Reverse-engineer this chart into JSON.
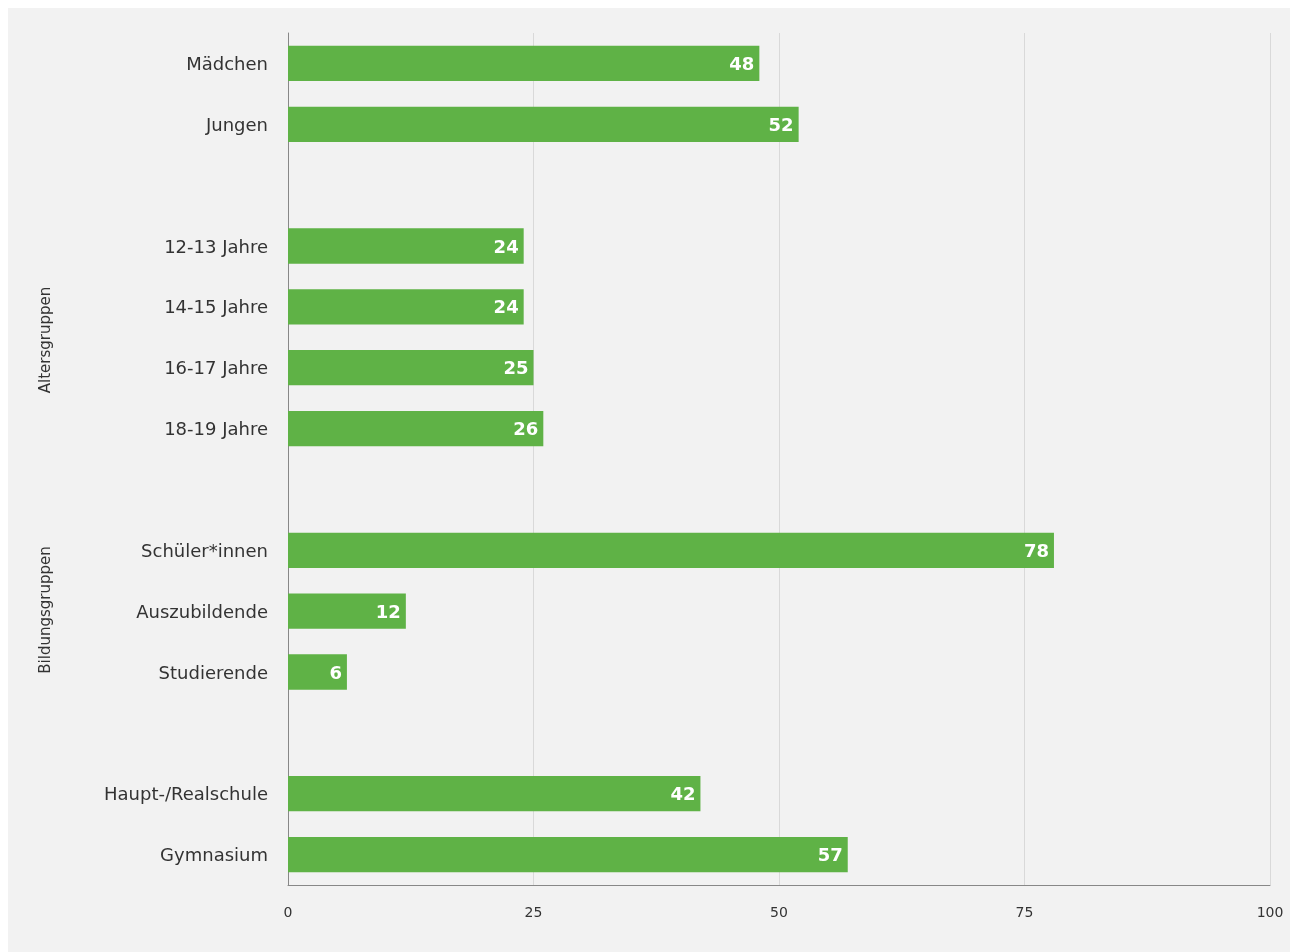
{
  "chart_data": {
    "type": "bar",
    "orientation": "horizontal",
    "categories": [
      "Mädchen",
      "Jungen",
      null,
      "12-13 Jahre",
      "14-15 Jahre",
      "16-17 Jahre",
      "18-19 Jahre",
      null,
      "Schüler*innen",
      "Auszubildende",
      "Studierende",
      null,
      "Haupt-/Realschule",
      "Gymnasium"
    ],
    "values": [
      48,
      52,
      null,
      24,
      24,
      25,
      26,
      null,
      78,
      12,
      6,
      null,
      42,
      57
    ],
    "color": "#5fb246",
    "xlim": [
      0,
      100
    ],
    "xticks": [
      0,
      25,
      50,
      75,
      100
    ],
    "grid": "x",
    "data_labels": true,
    "annotations": [
      "Altersgruppen",
      "Bildungsgruppen"
    ]
  }
}
